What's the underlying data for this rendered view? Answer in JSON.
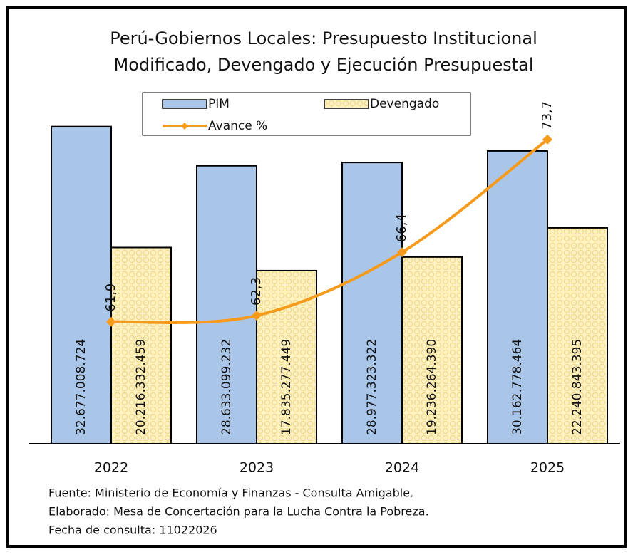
{
  "chart_data": {
    "type": "bar",
    "title": [
      "Perú-Gobiernos Locales: Presupuesto Institucional",
      "Modificado, Devengado y Ejecución Presupuestal"
    ],
    "categories": [
      "2022",
      "2023",
      "2024",
      "2025"
    ],
    "series": [
      {
        "name": "PIM",
        "color": "#a9c6e8",
        "values": [
          32677008724,
          28633099232,
          28977323322,
          30162778464
        ],
        "value_labels": [
          "32.677.008.724",
          "28.633.099.232",
          "28.977.323.322",
          "30.162.778.464"
        ]
      },
      {
        "name": "Devengado",
        "color": "#fff2c2",
        "values": [
          20216332459,
          17835277449,
          19236264390,
          22240843395
        ],
        "value_labels": [
          "20.216.332.459",
          "17.835.277.449",
          "19.236.264.390",
          "22.240.843.395"
        ]
      },
      {
        "name": "Avance %",
        "type": "line",
        "axis": "y2",
        "color": "#f59a1b",
        "values": [
          61.9,
          62.3,
          66.4,
          73.7
        ],
        "value_labels": [
          "61,9",
          "62,3",
          "66,4",
          "73,7"
        ]
      }
    ],
    "ylim": [
      0,
      35000000000
    ],
    "y2lim": [
      54,
      76
    ],
    "notes": [
      "Fuente: Ministerio de Economía y Finanzas - Consulta Amigable.",
      "Elaborado: Mesa de Concertación para la Lucha Contra la Pobreza.",
      "Fecha de consulta: 11022026"
    ]
  }
}
